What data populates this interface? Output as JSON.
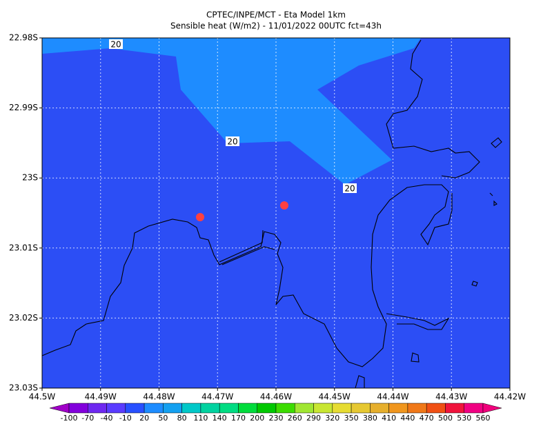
{
  "header": {
    "line1": "CPTEC/INPE/MCT -  Eta Model 1km",
    "line2": "Sensible heat (W/m2) - 11/01/2022 00UTC fct=43h"
  },
  "y_axis": {
    "labels": [
      "22.98S",
      "22.99S",
      "23S",
      "23.01S",
      "23.02S",
      "23.03S"
    ]
  },
  "x_axis": {
    "labels": [
      "44.5W",
      "44.49W",
      "44.48W",
      "44.47W",
      "44.46W",
      "44.45W",
      "44.44W",
      "44.43W",
      "44.42W"
    ]
  },
  "contour_labels": [
    "20",
    "20",
    "20"
  ],
  "colorbar": {
    "labels": [
      "-100",
      "-70",
      "-40",
      "-10",
      "20",
      "50",
      "80",
      "110",
      "140",
      "170",
      "200",
      "230",
      "260",
      "290",
      "320",
      "350",
      "380",
      "410",
      "440",
      "470",
      "500",
      "530",
      "560"
    ],
    "colors": [
      "#a000c8",
      "#8200dc",
      "#6e28f0",
      "#5a3cff",
      "#2850ff",
      "#1e8cff",
      "#14a0f0",
      "#00c8c8",
      "#00d2a0",
      "#00dc82",
      "#00dc3c",
      "#00c800",
      "#3cdc00",
      "#a0e632",
      "#c8e632",
      "#e6dc32",
      "#e6c832",
      "#e6af2d",
      "#f0961e",
      "#f07818",
      "#f05014",
      "#f0143c",
      "#f00082",
      "#f0007c"
    ]
  }
}
